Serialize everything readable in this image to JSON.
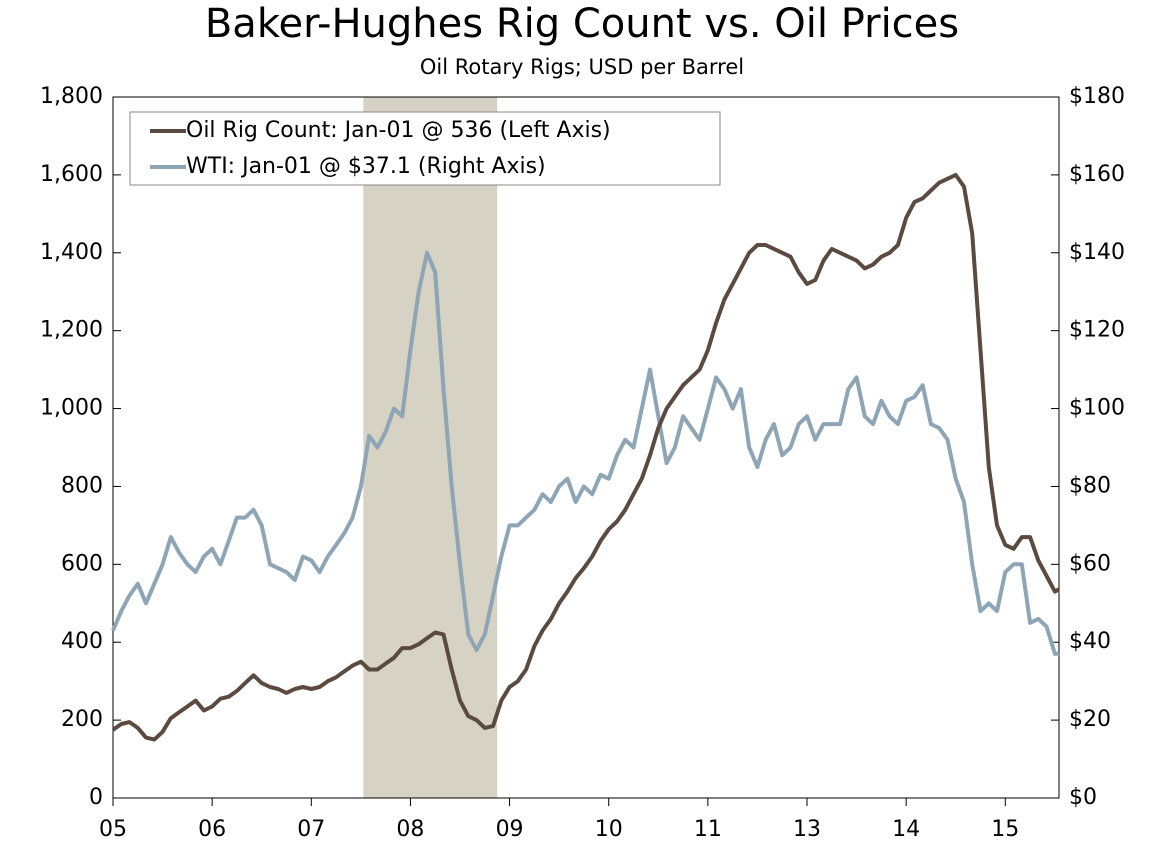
{
  "chart_data": {
    "type": "line",
    "title": "Baker-Hughes Rig Count vs. Oil Prices",
    "subtitle": "Oil Rotary Rigs; USD per Barrel",
    "x": [
      0,
      1,
      2,
      3,
      4,
      5,
      6,
      7,
      8,
      9,
      10,
      11,
      12,
      13,
      14,
      15,
      16,
      17,
      18,
      19,
      20,
      21,
      22,
      23,
      24,
      25,
      26,
      27,
      28,
      29,
      30,
      31,
      32,
      33,
      34,
      35,
      36,
      37,
      38,
      39,
      40,
      41,
      42,
      43,
      44,
      45,
      46,
      47,
      48,
      49,
      50,
      51,
      52,
      53,
      54,
      55,
      56,
      57,
      58,
      59,
      60,
      61,
      62,
      63,
      64,
      65,
      66,
      67,
      68,
      69,
      70,
      71,
      72,
      73,
      74,
      75,
      76,
      77,
      78,
      79,
      80,
      81,
      82,
      83,
      84,
      85,
      86,
      87,
      88,
      89,
      90,
      91,
      92,
      93,
      94,
      95,
      96,
      97,
      98,
      99,
      100,
      101,
      102,
      103,
      104,
      105,
      106,
      107,
      108,
      109,
      110,
      111,
      112,
      113,
      114,
      114.5
    ],
    "xlim": [
      0,
      114.5
    ],
    "xticks": [
      {
        "value": 0,
        "label": "05"
      },
      {
        "value": 12,
        "label": "06"
      },
      {
        "value": 24,
        "label": "07"
      },
      {
        "value": 36,
        "label": "08"
      },
      {
        "value": 48,
        "label": "09"
      },
      {
        "value": 60,
        "label": "10"
      },
      {
        "value": 72,
        "label": "11"
      },
      {
        "value": 84,
        "label": "13"
      },
      {
        "value": 96,
        "label": "14"
      },
      {
        "value": 108,
        "label": "15"
      }
    ],
    "ylim": [
      0,
      1800
    ],
    "yticks": [
      0,
      200,
      400,
      600,
      800,
      {
        "value": 1000,
        "label": "1,000"
      },
      {
        "value": 1200,
        "label": "1,200"
      },
      {
        "value": 1400,
        "label": "1,400"
      },
      {
        "value": 1600,
        "label": "1,600"
      },
      {
        "value": 1800,
        "label": "1,800"
      }
    ],
    "y2lim": [
      0,
      180
    ],
    "y2ticks": [
      {
        "value": 0,
        "label": "$0"
      },
      {
        "value": 20,
        "label": "$20"
      },
      {
        "value": 40,
        "label": "$40"
      },
      {
        "value": 60,
        "label": "$60"
      },
      {
        "value": 80,
        "label": "$80"
      },
      {
        "value": 100,
        "label": "$100"
      },
      {
        "value": 120,
        "label": "$120"
      },
      {
        "value": 140,
        "label": "$140"
      },
      {
        "value": 160,
        "label": "$160"
      },
      {
        "value": 180,
        "label": "$180"
      }
    ],
    "shaded_range": [
      30.3,
      46.5
    ],
    "shade_color": "#d6d2c4",
    "legend": "upper left",
    "series": [
      {
        "name": "Oil Rig Count: Jan-01 @ 536 (Left Axis)",
        "color": "#5b4a3f",
        "values": [
          175,
          190,
          195,
          180,
          155,
          150,
          170,
          205,
          220,
          235,
          250,
          225,
          235,
          255,
          260,
          275,
          295,
          315,
          295,
          285,
          280,
          270,
          280,
          285,
          280,
          285,
          300,
          310,
          325,
          340,
          350,
          330,
          330,
          345,
          360,
          385,
          385,
          395,
          410,
          425,
          420,
          330,
          250,
          210,
          200,
          180,
          185,
          250,
          285,
          300,
          330,
          390,
          430,
          460,
          500,
          530,
          565,
          590,
          620,
          660,
          690,
          710,
          740,
          780,
          820,
          880,
          950,
          1000,
          1030,
          1060,
          1080,
          1100,
          1150,
          1220,
          1280,
          1320,
          1360,
          1400,
          1420,
          1420,
          1410,
          1400,
          1390,
          1350,
          1320,
          1330,
          1380,
          1410,
          1400,
          1390,
          1380,
          1360,
          1370,
          1390,
          1400,
          1420,
          1490,
          1530,
          1540,
          1560,
          1580,
          1590,
          1600,
          1570,
          1450,
          1150,
          850,
          700,
          650,
          640,
          670,
          670,
          610,
          570,
          530,
          536
        ]
      },
      {
        "name": "WTI: Jan-01 @ $37.1 (Right Axis)",
        "color": "#8da5b5",
        "axis": "y2",
        "values": [
          43,
          48,
          52,
          55,
          50,
          55,
          60,
          67,
          63,
          60,
          58,
          62,
          64,
          60,
          66,
          72,
          72,
          74,
          70,
          60,
          59,
          58,
          56,
          62,
          61,
          58,
          62,
          65,
          68,
          72,
          80,
          93,
          90,
          94,
          100,
          98,
          115,
          130,
          140,
          135,
          105,
          80,
          60,
          42,
          38,
          42,
          52,
          62,
          70,
          70,
          72,
          74,
          78,
          76,
          80,
          82,
          76,
          80,
          78,
          83,
          82,
          88,
          92,
          90,
          100,
          110,
          98,
          86,
          90,
          98,
          95,
          92,
          100,
          108,
          105,
          100,
          105,
          90,
          85,
          92,
          96,
          88,
          90,
          96,
          98,
          92,
          96,
          96,
          96,
          105,
          108,
          98,
          96,
          102,
          98,
          96,
          102,
          103,
          106,
          96,
          95,
          92,
          82,
          76,
          60,
          48,
          50,
          48,
          58,
          60,
          60,
          45,
          46,
          44,
          37,
          37.1
        ]
      }
    ]
  }
}
